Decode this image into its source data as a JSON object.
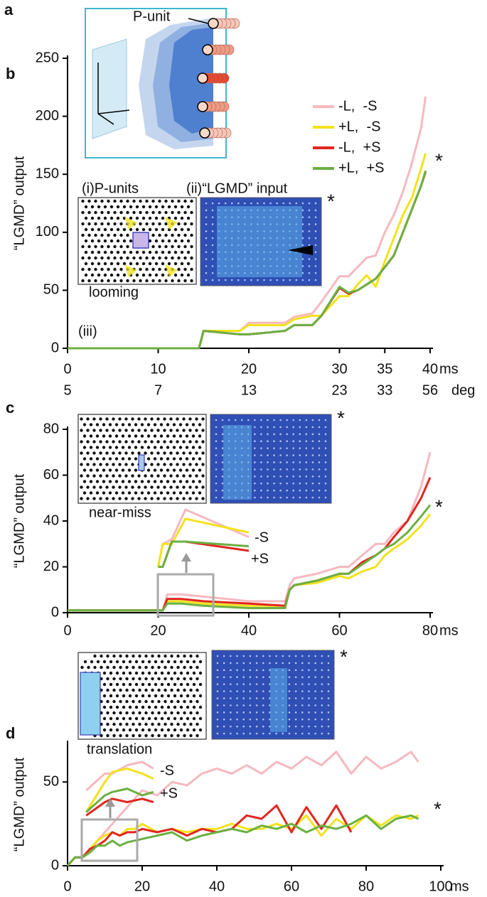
{
  "diagram": {
    "panel": "a",
    "label": "P-unit"
  },
  "chart_data": [
    {
      "type": "line",
      "panel": "b",
      "ylabel": "“LGMD” output",
      "x_unit": "ms",
      "x2_unit": "deg",
      "legend": "upper right",
      "x": [
        0,
        14.5,
        15,
        19,
        20,
        24,
        25,
        27,
        28,
        30,
        31,
        32,
        33,
        34,
        35,
        36,
        37,
        38,
        39,
        39.5
      ],
      "series": [
        {
          "name": "-L,  -S",
          "color": "#f7b8bf",
          "values": [
            0,
            0,
            15,
            15,
            22,
            22,
            27,
            30,
            40,
            62,
            62,
            70,
            78,
            80,
            100,
            115,
            135,
            160,
            190,
            217
          ]
        },
        {
          "name": "+L,  -S",
          "color": "#f2e21c",
          "values": [
            0,
            0,
            15,
            15,
            20,
            20,
            25,
            28,
            28,
            45,
            45,
            55,
            63,
            53,
            75,
            95,
            115,
            130,
            155,
            168
          ]
        },
        {
          "name": "-L,  +S",
          "color": "#e0261f",
          "values": [
            0,
            0,
            15,
            12,
            12,
            15,
            20,
            20,
            28,
            52,
            47,
            50,
            55,
            60,
            70,
            80,
            100,
            120,
            140,
            152
          ]
        },
        {
          "name": "+L,  +S",
          "color": "#6bb042",
          "values": [
            0,
            0,
            15,
            12,
            12,
            15,
            20,
            20,
            28,
            53,
            48,
            50,
            55,
            60,
            70,
            80,
            100,
            120,
            140,
            153
          ]
        }
      ],
      "xlim": [
        0,
        40
      ],
      "ylim": [
        0,
        250
      ],
      "xticks": [
        0,
        10,
        20,
        30,
        35,
        40
      ],
      "yticks": [
        0,
        50,
        100,
        150,
        200,
        250
      ],
      "xticks2": [
        {
          "value": 0,
          "label": "5"
        },
        {
          "value": 10,
          "label": "7"
        },
        {
          "value": 20,
          "label": "13"
        },
        {
          "value": 30,
          "label": "23"
        },
        {
          "value": 35,
          "label": "33"
        },
        {
          "value": 40,
          "label": "56"
        }
      ],
      "annotations": [
        "(i)P-units",
        "(ii)“LGMD” input",
        "looming",
        "(iii)",
        "*",
        "*"
      ]
    },
    {
      "type": "line",
      "panel": "c",
      "ylabel": "“LGMD” output",
      "x_unit": "ms",
      "x": [
        0,
        21,
        22,
        25,
        30,
        40,
        48,
        49,
        50,
        55,
        60,
        62,
        65,
        68,
        70,
        72,
        75,
        78,
        80
      ],
      "series": [
        {
          "color": "#f7b8bf",
          "values": [
            1,
            1,
            8,
            8,
            7,
            5,
            5,
            12,
            15,
            17,
            20,
            20,
            25,
            30,
            30,
            35,
            40,
            55,
            70
          ]
        },
        {
          "color": "#f2e21c",
          "values": [
            1,
            1,
            5,
            5,
            4,
            3,
            3,
            10,
            12,
            13,
            16,
            15,
            18,
            20,
            25,
            28,
            32,
            38,
            43
          ]
        },
        {
          "color": "#e0261f",
          "values": [
            1,
            1,
            6,
            6,
            5,
            4,
            3,
            10,
            12,
            14,
            17,
            17,
            22,
            25,
            28,
            33,
            40,
            50,
            59
          ]
        },
        {
          "color": "#6bb042",
          "values": [
            1,
            1,
            4,
            4,
            3,
            2,
            2,
            10,
            12,
            14,
            17,
            17,
            21,
            25,
            28,
            30,
            35,
            42,
            47
          ]
        }
      ],
      "overlay_x": [
        20,
        21,
        23,
        26,
        40
      ],
      "overlay_series": [
        {
          "color": "#f7b8bf",
          "values": [
            20,
            30,
            32,
            45,
            33
          ]
        },
        {
          "color": "#f2e21c",
          "values": [
            20,
            30,
            30,
            41,
            35
          ]
        },
        {
          "color": "#e0261f",
          "values": [
            20,
            20,
            31,
            31,
            27
          ]
        },
        {
          "color": "#6bb042",
          "values": [
            20,
            20,
            31,
            31,
            29
          ]
        }
      ],
      "xlim": [
        0,
        80
      ],
      "ylim": [
        0,
        80
      ],
      "xticks": [
        0,
        20,
        40,
        60,
        80
      ],
      "yticks": [
        0,
        20,
        40,
        60,
        80
      ],
      "annotations": [
        "near-miss",
        "-S",
        "+S",
        "*",
        "*"
      ]
    },
    {
      "type": "line",
      "panel": "d",
      "ylabel": "“LGMD” output",
      "x_unit": "ms",
      "x": [
        0,
        2,
        4,
        6,
        8,
        10,
        12,
        14,
        16,
        18,
        20,
        24,
        28,
        32,
        36,
        40,
        44,
        48,
        52,
        56,
        60,
        64,
        68,
        72,
        76,
        80,
        84,
        88,
        92,
        94
      ],
      "series": [
        {
          "color": "#f7b8bf",
          "values": [
            0,
            5,
            5,
            8,
            15,
            20,
            25,
            30,
            35,
            40,
            45,
            42,
            50,
            48,
            55,
            58,
            55,
            60,
            55,
            62,
            58,
            65,
            60,
            68,
            55,
            65,
            58,
            62,
            68,
            62
          ]
        },
        {
          "color": "#f2e21c",
          "values": [
            0,
            5,
            5,
            10,
            15,
            18,
            20,
            18,
            22,
            22,
            25,
            20,
            22,
            20,
            22,
            22,
            25,
            22,
            22,
            25,
            22,
            30,
            18,
            28,
            22,
            30,
            24,
            30,
            28,
            30
          ]
        },
        {
          "color": "#e0261f",
          "values": [
            0,
            5,
            5,
            10,
            12,
            15,
            20,
            18,
            20,
            20,
            22,
            20,
            22,
            18,
            22,
            20,
            22,
            30,
            28,
            36,
            20,
            35,
            22,
            36,
            20,
            null,
            null,
            null,
            null,
            null
          ]
        },
        {
          "color": "#6bb042",
          "values": [
            0,
            5,
            5,
            8,
            12,
            12,
            15,
            12,
            14,
            15,
            16,
            18,
            20,
            15,
            18,
            20,
            22,
            20,
            24,
            22,
            25,
            20,
            24,
            22,
            25,
            30,
            22,
            28,
            30,
            28
          ]
        }
      ],
      "overlay_x": [
        5,
        10,
        12,
        16,
        20,
        23
      ],
      "overlay_series": [
        {
          "color": "#f7b8bf",
          "values": [
            45,
            55,
            55,
            60,
            62,
            58
          ]
        },
        {
          "color": "#f2e21c",
          "values": [
            32,
            50,
            56,
            58,
            55,
            52
          ]
        },
        {
          "color": "#e0261f",
          "values": [
            30,
            38,
            40,
            38,
            40,
            38
          ]
        },
        {
          "color": "#6bb042",
          "values": [
            32,
            42,
            44,
            46,
            42,
            44
          ]
        }
      ],
      "xlim": [
        0,
        100
      ],
      "ylim": [
        0,
        73
      ],
      "xticks": [
        0,
        20,
        40,
        60,
        80,
        100
      ],
      "yticks": [
        0,
        50
      ],
      "annotations": [
        "translation",
        "-S",
        "+S",
        "*",
        "*"
      ]
    }
  ]
}
